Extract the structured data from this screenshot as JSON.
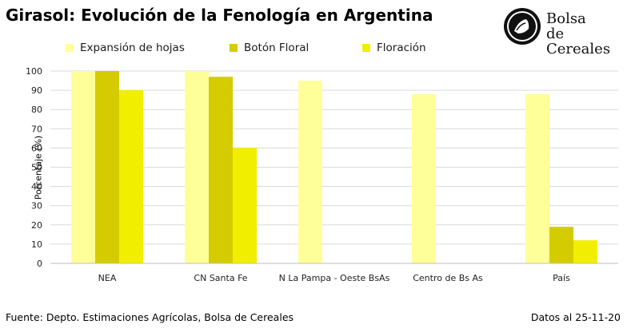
{
  "header": {
    "title": "Girasol: Evolución de la Fenología en Argentina",
    "logo_line1": "Bolsa",
    "logo_line2": "de Cereales"
  },
  "footer": {
    "source": "Fuente: Depto. Estimaciones Agrícolas, Bolsa de Cereales",
    "date": "Datos al 25-11-20"
  },
  "chart_data": {
    "type": "bar",
    "title": "Girasol: Evolución de la Fenología en Argentina",
    "xlabel": "",
    "ylabel": "Porcentaje (%)",
    "ylim": [
      0,
      100
    ],
    "yticks": [
      0,
      10,
      20,
      30,
      40,
      50,
      60,
      70,
      80,
      90,
      100
    ],
    "grid": true,
    "legend_position": "top",
    "categories": [
      "NEA",
      "CN Santa Fe",
      "N La Pampa - Oeste BsAs",
      "Centro de Bs As",
      "País"
    ],
    "series": [
      {
        "name": "Expansión de hojas",
        "color": "#FFFF99",
        "values": [
          100,
          100,
          95,
          88,
          88
        ]
      },
      {
        "name": "Botón Floral",
        "color": "#D4CC00",
        "values": [
          100,
          97,
          0,
          0,
          19
        ]
      },
      {
        "name": "Floración",
        "color": "#F2EE00",
        "values": [
          90,
          60,
          0,
          0,
          12
        ]
      }
    ]
  }
}
